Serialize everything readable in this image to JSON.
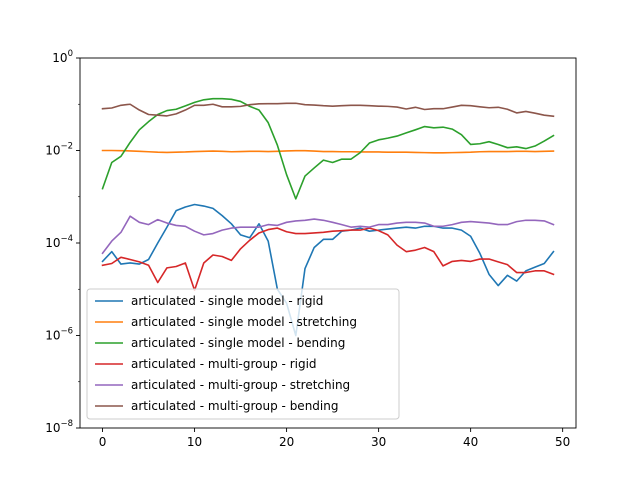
{
  "chart_data": {
    "type": "line",
    "xlim": [
      -2.45,
      51.45
    ],
    "ylim_log10": [
      -8,
      0
    ],
    "yscale": "log",
    "xticks": [
      0,
      10,
      20,
      30,
      40,
      50
    ],
    "xtick_labels": [
      "0",
      "10",
      "20",
      "30",
      "40",
      "50"
    ],
    "yticks": [
      -8,
      -6,
      -4,
      -2,
      0
    ],
    "ytick_labels": [
      {
        "base": "10",
        "exp": "−8"
      },
      {
        "base": "10",
        "exp": "−6"
      },
      {
        "base": "10",
        "exp": "−4"
      },
      {
        "base": "10",
        "exp": "−2"
      },
      {
        "base": "10",
        "exp": "0"
      }
    ],
    "legend_position": "lower-left",
    "grid": false,
    "x": [
      0,
      1,
      2,
      3,
      4,
      5,
      6,
      7,
      8,
      9,
      10,
      11,
      12,
      13,
      14,
      15,
      16,
      17,
      18,
      19,
      20,
      21,
      22,
      23,
      24,
      25,
      26,
      27,
      28,
      29,
      30,
      31,
      32,
      33,
      34,
      35,
      36,
      37,
      38,
      39,
      40,
      41,
      42,
      43,
      44,
      45,
      46,
      47,
      48,
      49
    ],
    "series": [
      {
        "name": "articulated - single model - rigid",
        "color": "#1f77b4",
        "values": [
          4e-05,
          6.5e-05,
          3.5e-05,
          3.7e-05,
          3.5e-05,
          4.4e-05,
          0.0001,
          0.00022,
          0.0005,
          0.0006,
          0.00068,
          0.00063,
          0.00056,
          0.00039,
          0.00026,
          0.00015,
          0.00013,
          0.00026,
          0.00011,
          1e-05,
          5e-06,
          1e-06,
          2.8e-05,
          8e-05,
          0.00012,
          0.00012,
          0.00018,
          0.00019,
          0.00021,
          0.00018,
          0.00019,
          0.0002,
          0.00021,
          0.00022,
          0.00021,
          0.00023,
          0.00023,
          0.00021,
          0.00021,
          0.00019,
          0.00014,
          6e-05,
          2.1e-05,
          1.2e-05,
          2e-05,
          1.5e-05,
          2.5e-05,
          3e-05,
          3.6e-05,
          6.5e-05
        ]
      },
      {
        "name": "articulated - single model - stretching",
        "color": "#ff7f0e",
        "values": [
          0.01,
          0.01,
          0.0099,
          0.0098,
          0.0096,
          0.0094,
          0.0092,
          0.0091,
          0.0092,
          0.0093,
          0.0095,
          0.0096,
          0.0097,
          0.0096,
          0.0094,
          0.0095,
          0.0096,
          0.0096,
          0.0095,
          0.0096,
          0.0098,
          0.0099,
          0.0099,
          0.0097,
          0.0095,
          0.0095,
          0.0094,
          0.0094,
          0.0093,
          0.0093,
          0.0093,
          0.0092,
          0.0092,
          0.0092,
          0.0091,
          0.009,
          0.0089,
          0.0089,
          0.009,
          0.0091,
          0.0092,
          0.0094,
          0.0095,
          0.0095,
          0.0095,
          0.0096,
          0.0096,
          0.0095,
          0.0096,
          0.0097
        ]
      },
      {
        "name": "articulated - single model - bending",
        "color": "#2ca02c",
        "values": [
          0.0015,
          0.0055,
          0.0075,
          0.015,
          0.028,
          0.042,
          0.06,
          0.073,
          0.078,
          0.092,
          0.11,
          0.125,
          0.132,
          0.132,
          0.128,
          0.115,
          0.09,
          0.075,
          0.04,
          0.013,
          0.003,
          0.0009,
          0.0028,
          0.0042,
          0.0062,
          0.0055,
          0.0065,
          0.0065,
          0.009,
          0.0145,
          0.017,
          0.0185,
          0.0205,
          0.024,
          0.028,
          0.033,
          0.031,
          0.032,
          0.029,
          0.022,
          0.0135,
          0.014,
          0.0155,
          0.0135,
          0.0115,
          0.012,
          0.011,
          0.0125,
          0.016,
          0.021
        ]
      },
      {
        "name": "articulated - multi-group - rigid",
        "color": "#d62728",
        "values": [
          3.3e-05,
          3.6e-05,
          4.9e-05,
          4.4e-05,
          3.9e-05,
          3.3e-05,
          1.4e-05,
          2.9e-05,
          3.1e-05,
          3.7e-05,
          9.5e-06,
          3.7e-05,
          5.5e-05,
          5.1e-05,
          4.2e-05,
          7.5e-05,
          0.000115,
          0.000165,
          0.000195,
          0.00021,
          0.000175,
          0.00016,
          0.00016,
          0.000165,
          0.00017,
          0.00018,
          0.000185,
          0.00019,
          0.00019,
          0.00021,
          0.000185,
          0.00015,
          9e-05,
          6.5e-05,
          7e-05,
          8e-05,
          6.5e-05,
          3.2e-05,
          4e-05,
          4.2e-05,
          4e-05,
          4.5e-05,
          4.5e-05,
          3.9e-05,
          3.4e-05,
          2.3e-05,
          2.3e-05,
          2.5e-05,
          2.5e-05,
          2.1e-05
        ]
      },
      {
        "name": "articulated - multi-group - stretching",
        "color": "#9467bd",
        "values": [
          6e-05,
          0.00011,
          0.00017,
          0.00038,
          0.00028,
          0.00025,
          0.00032,
          0.00027,
          0.00024,
          0.00023,
          0.00018,
          0.00015,
          0.00016,
          0.00019,
          0.00021,
          0.00022,
          0.00022,
          0.00022,
          0.00025,
          0.00024,
          0.00028,
          0.0003,
          0.00031,
          0.00033,
          0.00031,
          0.00028,
          0.00025,
          0.00022,
          0.00023,
          0.00022,
          0.00025,
          0.00025,
          0.00027,
          0.00028,
          0.00028,
          0.00027,
          0.00023,
          0.00023,
          0.00025,
          0.00028,
          0.00029,
          0.00028,
          0.00027,
          0.00025,
          0.00025,
          0.00029,
          0.00031,
          0.00031,
          0.0003,
          0.00025
        ]
      },
      {
        "name": "articulated - multi-group - bending",
        "color": "#8c564b",
        "values": [
          0.08,
          0.083,
          0.095,
          0.1,
          0.075,
          0.06,
          0.058,
          0.056,
          0.062,
          0.075,
          0.095,
          0.095,
          0.1,
          0.088,
          0.088,
          0.09,
          0.098,
          0.102,
          0.103,
          0.103,
          0.105,
          0.105,
          0.098,
          0.096,
          0.093,
          0.091,
          0.093,
          0.095,
          0.095,
          0.093,
          0.091,
          0.09,
          0.087,
          0.079,
          0.086,
          0.077,
          0.08,
          0.08,
          0.087,
          0.095,
          0.093,
          0.088,
          0.084,
          0.086,
          0.078,
          0.065,
          0.07,
          0.064,
          0.058,
          0.055
        ]
      }
    ]
  }
}
